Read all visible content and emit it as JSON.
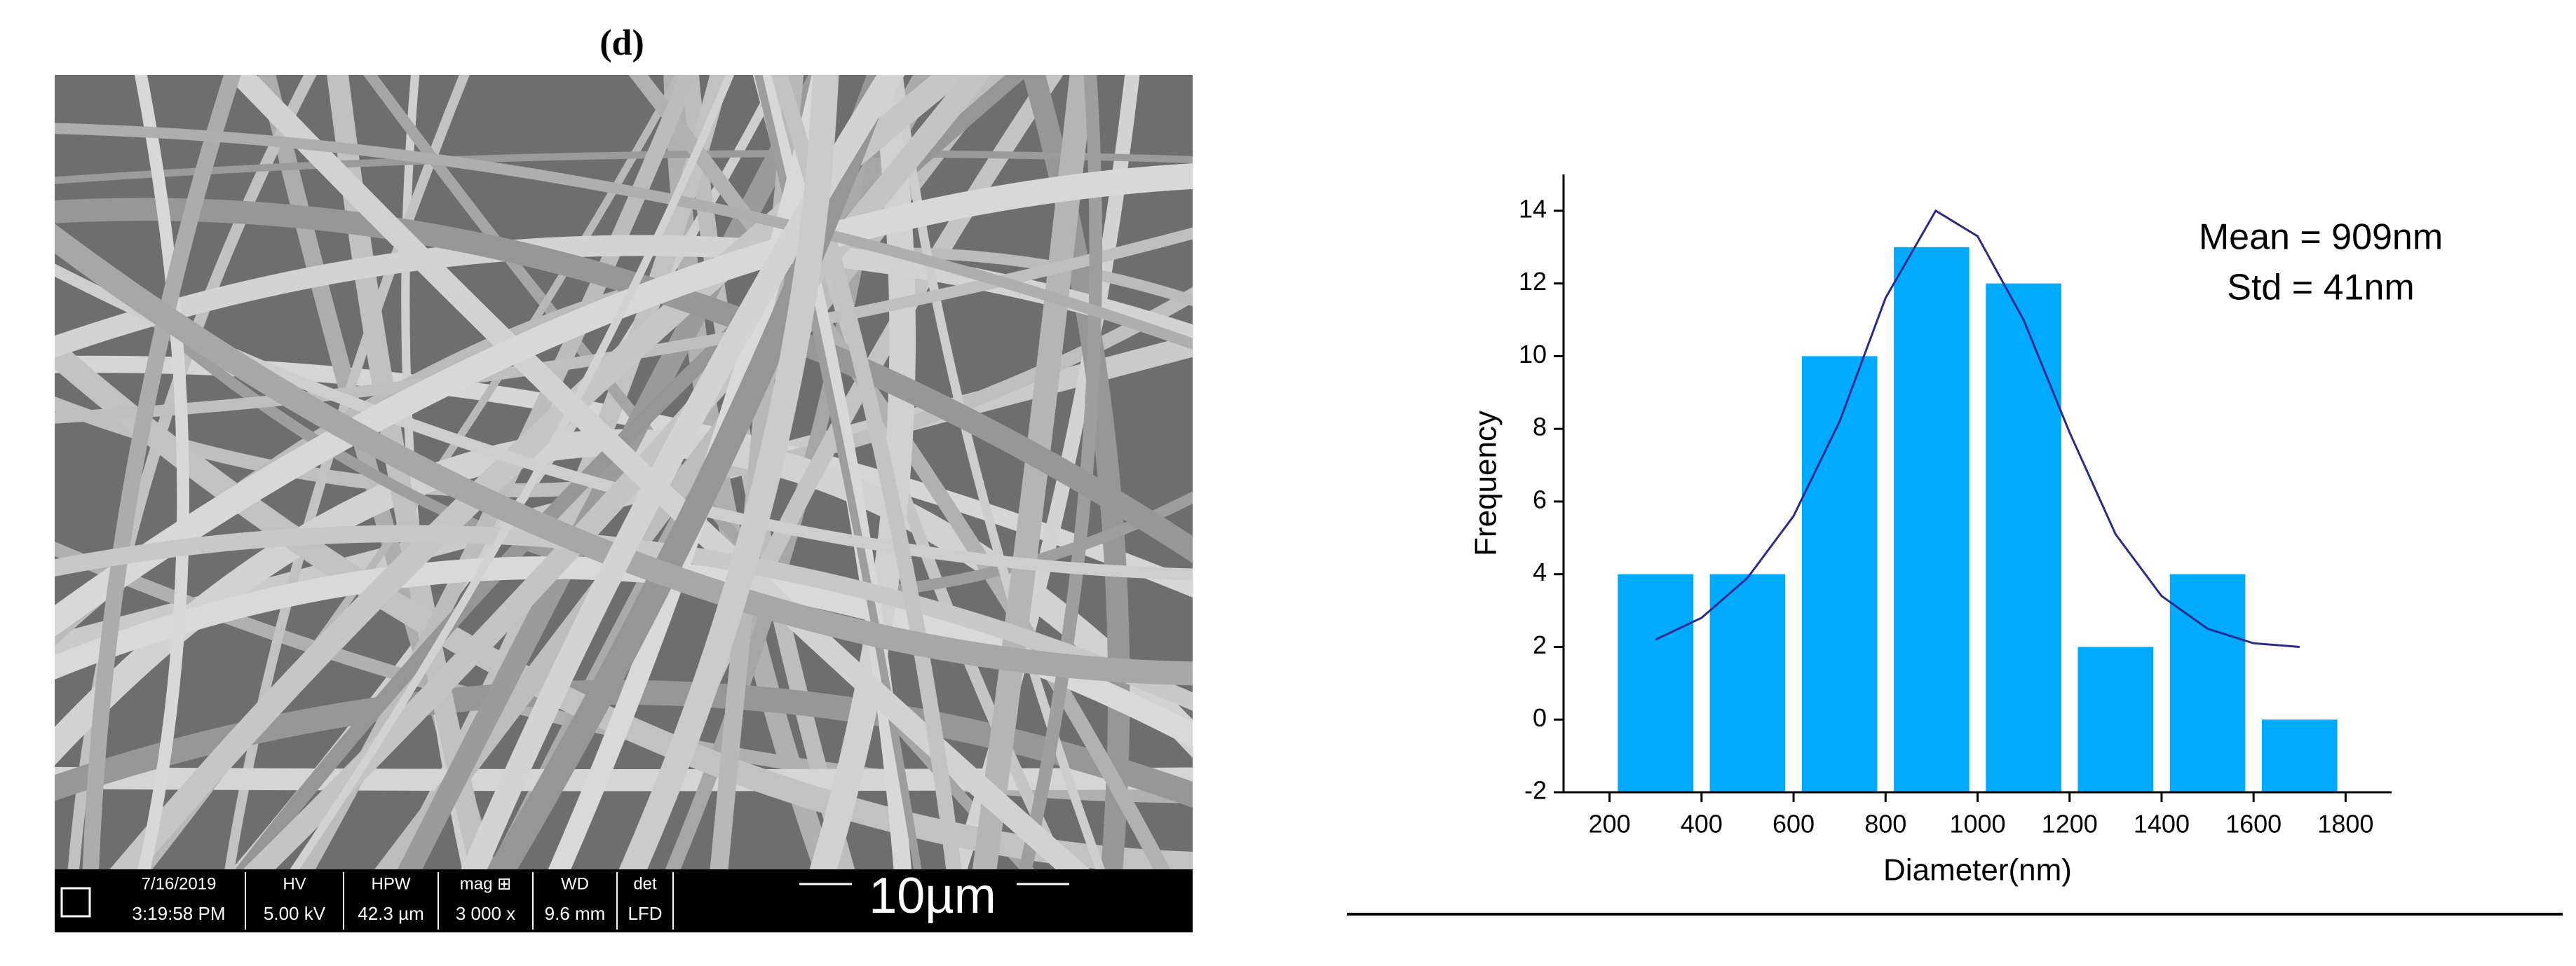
{
  "panel_label": "(d)",
  "sem_info": {
    "fields": [
      {
        "label": "7/16/2019",
        "value": "3:19:58 PM"
      },
      {
        "label": "HV",
        "value": "5.00 kV"
      },
      {
        "label": "HPW",
        "value": "42.3 µm"
      },
      {
        "label": "mag ⊞",
        "value": "3 000 x"
      },
      {
        "label": "WD",
        "value": "9.6 mm"
      },
      {
        "label": "det",
        "value": "LFD"
      }
    ],
    "scale_bar": "10µm"
  },
  "chart_data": {
    "type": "histogram",
    "x_label": "Diameter(nm)",
    "y_label": "Frequency",
    "bins": [
      200,
      400,
      600,
      800,
      1000,
      1200,
      1400,
      1600,
      1800
    ],
    "values": [
      4,
      4,
      10,
      13,
      12,
      2,
      4,
      0
    ],
    "color": "#00aaff",
    "xlim": [
      100,
      1900
    ],
    "ylim": [
      -2,
      15
    ],
    "xticks": [
      200,
      400,
      600,
      800,
      1000,
      1200,
      1400,
      1600,
      1800
    ],
    "yticks": [
      -2,
      0,
      2,
      4,
      6,
      8,
      10,
      12,
      14
    ],
    "fit_curve": {
      "color": "#2b2b8c",
      "x": [
        300,
        400,
        500,
        600,
        700,
        800,
        909,
        1000,
        1100,
        1200,
        1300,
        1400,
        1500,
        1600,
        1700
      ],
      "values": [
        2.2,
        2.8,
        3.9,
        5.6,
        8.2,
        11.6,
        14,
        13.3,
        11,
        7.9,
        5.1,
        3.4,
        2.5,
        2.1,
        2
      ]
    },
    "annotations": [
      "Mean = 909nm",
      "Std = 41nm"
    ]
  }
}
